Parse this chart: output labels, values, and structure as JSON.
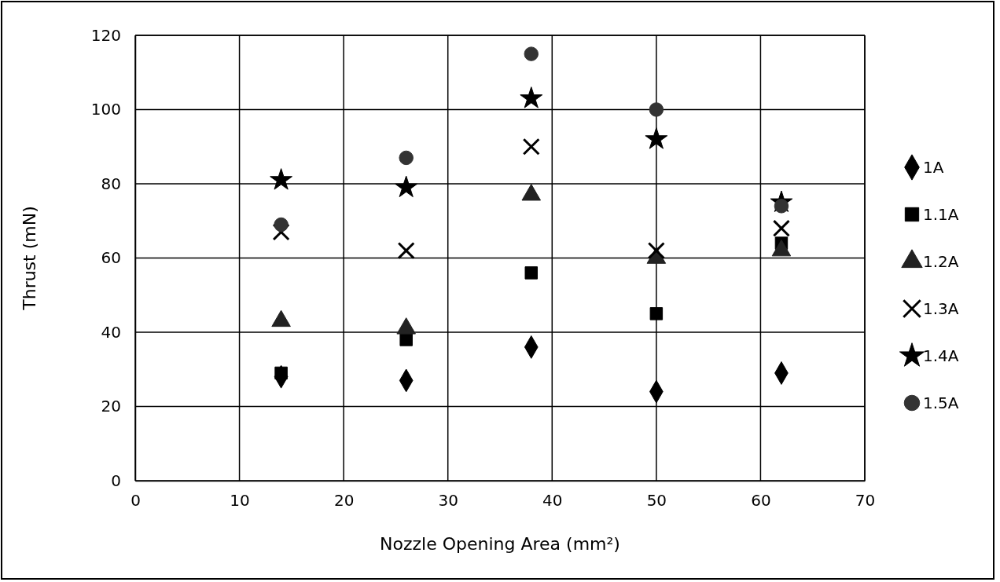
{
  "chart_data": {
    "type": "scatter",
    "xlabel": "Nozzle Opening Area (mm²)",
    "ylabel": "Thrust (mN)",
    "x": [
      14,
      26,
      38,
      50,
      62
    ],
    "series": [
      {
        "name": "1A",
        "color": "#000000",
        "marker": "diamond",
        "values": [
          28,
          27,
          36,
          24,
          29
        ]
      },
      {
        "name": "1.1A",
        "color": "#000000",
        "marker": "square",
        "values": [
          29,
          38,
          56,
          45,
          64
        ]
      },
      {
        "name": "1.2A",
        "color": "#222222",
        "marker": "triangle",
        "values": [
          43,
          41,
          77,
          60,
          62
        ]
      },
      {
        "name": "1.3A",
        "color": "#000000",
        "marker": "cross",
        "values": [
          67,
          62,
          90,
          62,
          68
        ]
      },
      {
        "name": "1.4A",
        "color": "#000000",
        "marker": "star",
        "values": [
          81,
          79,
          103,
          92,
          75
        ]
      },
      {
        "name": "1.5A",
        "color": "#333333",
        "marker": "circle",
        "values": [
          69,
          87,
          115,
          100,
          74
        ]
      }
    ],
    "xlim": [
      0,
      70
    ],
    "xticks": [
      0,
      10,
      20,
      30,
      40,
      50,
      60,
      70
    ],
    "ylim": [
      0,
      120
    ],
    "yticks": [
      0,
      20,
      40,
      60,
      80,
      100,
      120
    ],
    "grid": true,
    "legend": "right"
  }
}
